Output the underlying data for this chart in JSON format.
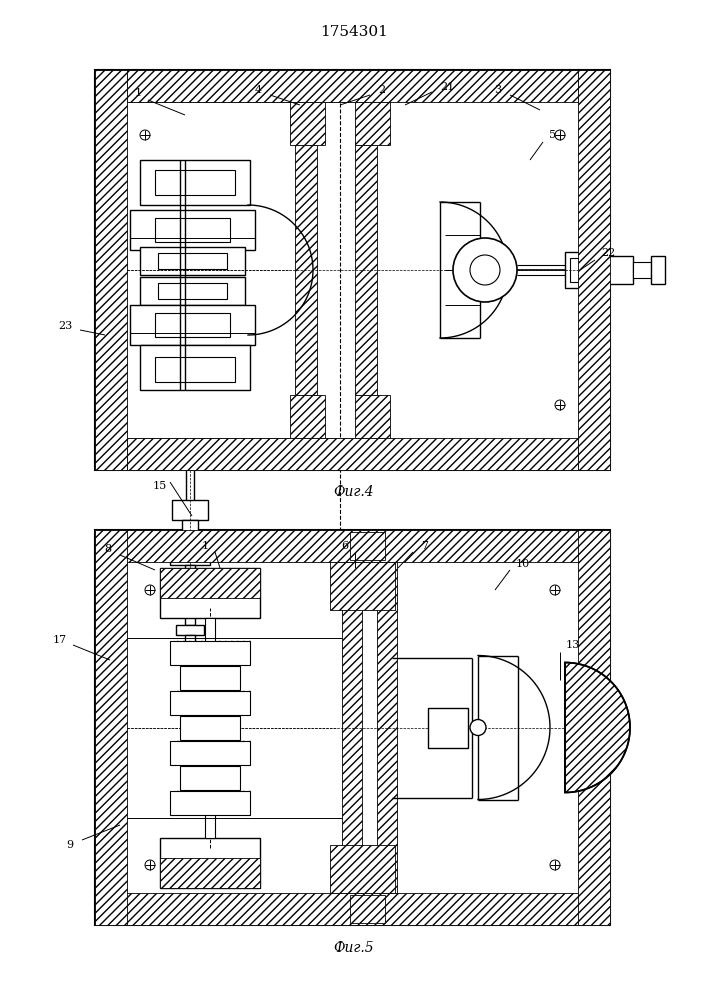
{
  "title": "1754301",
  "fig4_label": "Фиг.4",
  "fig5_label": "Фиг.5",
  "bg_color": "#ffffff"
}
